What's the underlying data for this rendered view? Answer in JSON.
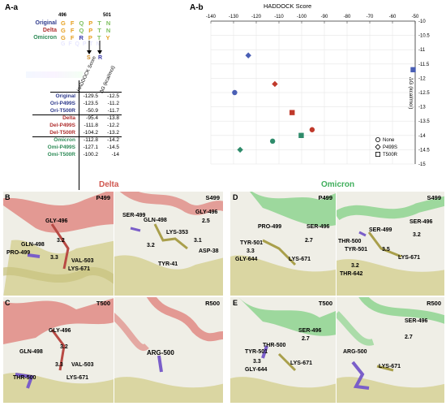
{
  "panel_a_a": {
    "label": "A-a",
    "pos_start": "496",
    "pos_end": "501",
    "sequences": [
      {
        "name": "Original",
        "name_color": "#2e3a8c",
        "residues": [
          "G",
          "F",
          "Q",
          "P",
          "T",
          "N"
        ]
      },
      {
        "name": "Delta",
        "name_color": "#b03030",
        "residues": [
          "G",
          "F",
          "Q",
          "P",
          "T",
          "N"
        ]
      },
      {
        "name": "Omicron",
        "name_color": "#2e8b57",
        "residues": [
          "G",
          "F",
          "R",
          "P",
          "T",
          "Y"
        ]
      }
    ],
    "mutation_labels": [
      "S",
      "R"
    ],
    "table_headers": [
      "HADDOCK Score",
      "ΔG (kcal/mol)"
    ],
    "rows": [
      {
        "name": "Original",
        "color": "#2e3a8c",
        "score": "-129.5",
        "dg": "-12.5"
      },
      {
        "name": "Ori-P499S",
        "color": "#2e3a8c",
        "score": "-123.5",
        "dg": "-11.2"
      },
      {
        "name": "Ori-T500R",
        "color": "#2e3a8c",
        "score": "-50.9",
        "dg": "-11.7"
      },
      {
        "name": "Delta",
        "color": "#b03030",
        "score": "-95.4",
        "dg": "-13.8"
      },
      {
        "name": "Del-P499S",
        "color": "#b03030",
        "score": "-111.8",
        "dg": "-12.2"
      },
      {
        "name": "Del-T500R",
        "color": "#b03030",
        "score": "-104.2",
        "dg": "-13.2"
      },
      {
        "name": "Omicron",
        "color": "#2e8b57",
        "score": "-112.8",
        "dg": "-14.2"
      },
      {
        "name": "Omi-P499S",
        "color": "#2e8b57",
        "score": "-127.1",
        "dg": "-14.5"
      },
      {
        "name": "Omi-T500R",
        "color": "#2e8b57",
        "score": "-100.2",
        "dg": "-14"
      }
    ]
  },
  "chart_data": {
    "type": "scatter",
    "label": "A-b",
    "title": "HADDOCK Score",
    "xlabel": "HADDOCK Score",
    "ylabel": "ΔG (kcal/mol)",
    "x_ticks": [
      "-140",
      "-130",
      "-120",
      "-110",
      "-100",
      "-90",
      "-80",
      "-70",
      "-60",
      "-50"
    ],
    "y_ticks": [
      "-10",
      "-10.5",
      "-11",
      "-11.5",
      "-12",
      "-12.5",
      "-13",
      "-13.5",
      "-14",
      "-14.5",
      "-15"
    ],
    "xlim": [
      -140,
      -50
    ],
    "ylim": [
      -15,
      -10
    ],
    "grid": true,
    "legend_position": "bottom-right",
    "legend": [
      {
        "name": "None",
        "shape": "circle"
      },
      {
        "name": "P499S",
        "shape": "diamond"
      },
      {
        "name": "T500R",
        "shape": "square"
      }
    ],
    "points": [
      {
        "x": -129.5,
        "y": -12.5,
        "color": "#4a5fb5",
        "shape": "circle"
      },
      {
        "x": -123.5,
        "y": -11.2,
        "color": "#4a5fb5",
        "shape": "diamond"
      },
      {
        "x": -50.9,
        "y": -11.7,
        "color": "#4a5fb5",
        "shape": "square"
      },
      {
        "x": -95.4,
        "y": -13.8,
        "color": "#c0392b",
        "shape": "circle"
      },
      {
        "x": -111.8,
        "y": -12.2,
        "color": "#c0392b",
        "shape": "diamond"
      },
      {
        "x": -104.2,
        "y": -13.2,
        "color": "#c0392b",
        "shape": "square"
      },
      {
        "x": -112.8,
        "y": -14.2,
        "color": "#2e8b6a",
        "shape": "circle"
      },
      {
        "x": -127.1,
        "y": -14.5,
        "color": "#2e8b6a",
        "shape": "diamond"
      },
      {
        "x": -100.2,
        "y": -14.0,
        "color": "#2e8b6a",
        "shape": "square"
      }
    ]
  },
  "structures": {
    "delta_title": "Delta",
    "omicron_title": "Omicron",
    "delta_color": "#d0574f",
    "omicron_color": "#3fae5b",
    "panels": [
      {
        "id": "B",
        "corner": "P499",
        "labels": [
          "GLY-496",
          "GLN-498",
          "PRO-499",
          "3.2",
          "3.3",
          "VAL-503",
          "LYS-671"
        ]
      },
      {
        "id": "",
        "corner": "S499",
        "labels": [
          "SER-499",
          "GLN-498",
          "GLY-496",
          "2.5",
          "LYS-353",
          "3.2",
          "3.1",
          "ASP-38",
          "TYR-41"
        ]
      },
      {
        "id": "C",
        "corner": "T500",
        "labels": [
          "GLY-496",
          "3.2",
          "GLN-498",
          "3.3",
          "VAL-503",
          "THR-500",
          "LYS-671"
        ]
      },
      {
        "id": "",
        "corner": "R500",
        "labels": [
          "ARG-500"
        ]
      },
      {
        "id": "D",
        "corner": "P499",
        "labels": [
          "PRO-499",
          "SER-496",
          "2.7",
          "TYR-501",
          "3.3",
          "GLY-644",
          "LYS-671"
        ]
      },
      {
        "id": "",
        "corner": "S499",
        "labels": [
          "SER-496",
          "SER-499",
          "THR-500",
          "3.2",
          "TYR-501",
          "3.5",
          "LYS-671",
          "3.2",
          "THR-642"
        ]
      },
      {
        "id": "E",
        "corner": "T500",
        "labels": [
          "SER-496",
          "THR-500",
          "2.7",
          "TYR-501",
          "3.3",
          "GLY-644",
          "LYS-671"
        ]
      },
      {
        "id": "",
        "corner": "R500",
        "labels": [
          "SER-496",
          "ARG-500",
          "2.7",
          "LYS-671"
        ]
      }
    ]
  }
}
